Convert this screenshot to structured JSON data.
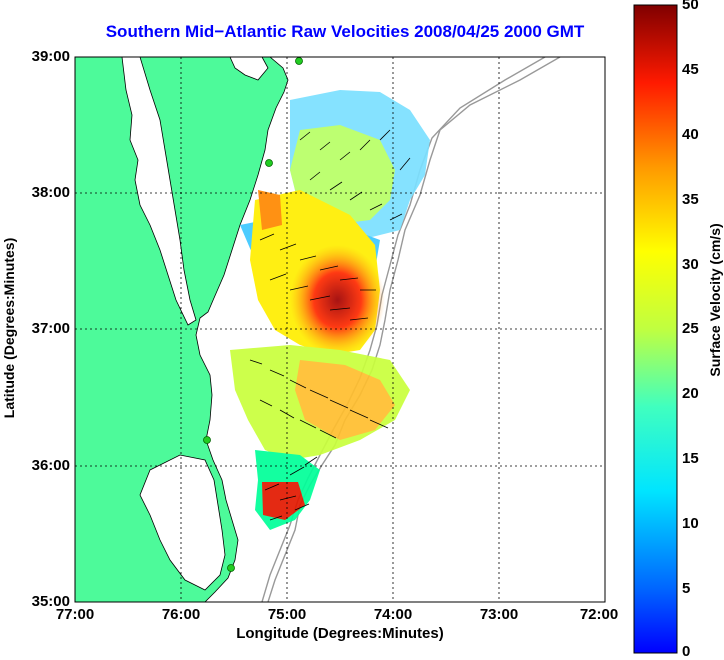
{
  "title": "Southern Mid−Atlantic Raw Velocities 2008/04/25 2000 GMT",
  "axes": {
    "xlabel": "Longitude (Degrees:Minutes)",
    "ylabel": "Latitude (Degrees:Minutes)",
    "xticks": [
      "77:00",
      "76:00",
      "75:00",
      "74:00",
      "73:00",
      "72:00"
    ],
    "yticks": [
      "39:00",
      "38:00",
      "37:00",
      "36:00",
      "35:00"
    ]
  },
  "colorbar": {
    "label": "Surface Velocity (cm/s)",
    "ticks": [
      "50",
      "45",
      "40",
      "35",
      "30",
      "25",
      "20",
      "15",
      "10",
      "5",
      "0"
    ],
    "min": 0,
    "max": 50
  },
  "colors": {
    "land": "#4dfa9a",
    "title": "#0000ff",
    "station": "#22cc22",
    "colormap": [
      "#0000ff",
      "#00ffff",
      "#ffff00",
      "#ff0000",
      "#800000"
    ]
  },
  "chart_data": {
    "type": "heatmap",
    "description_units": "surface current speed cm/s over lon/lat",
    "xlim": [
      -77,
      -72
    ],
    "ylim": [
      35,
      39
    ],
    "grid": true,
    "stations": [
      {
        "lon": -74.9,
        "lat": 38.97
      },
      {
        "lon": -75.09,
        "lat": 38.22
      },
      {
        "lon": -75.67,
        "lat": 36.2
      },
      {
        "lon": -75.47,
        "lat": 35.25
      }
    ]
  }
}
